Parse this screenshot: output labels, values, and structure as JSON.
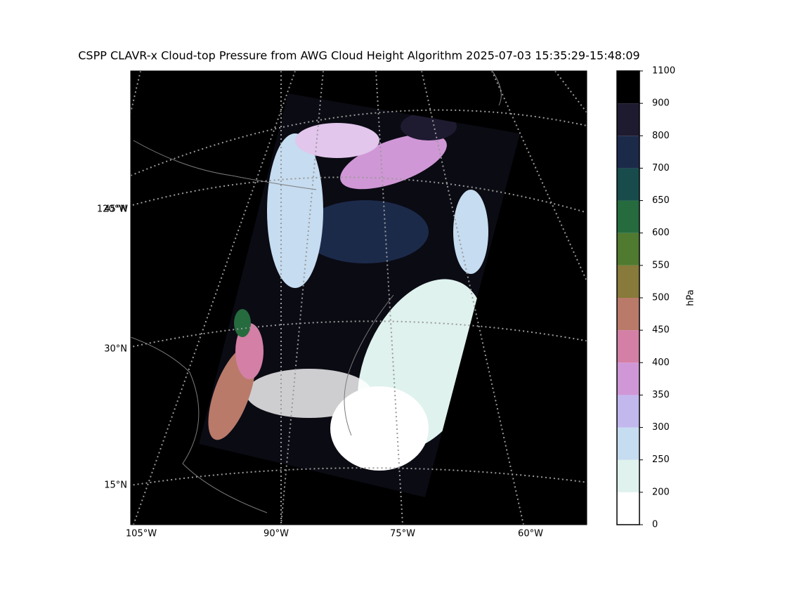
{
  "title": "CSPP CLAVR-x Cloud-top Pressure from AWG Cloud Height Algorithm 2025-07-03 15:35:29-15:48:09",
  "map": {
    "lon_labels": [
      "105°W",
      "90°W",
      "75°W",
      "60°W"
    ],
    "lat_labels": [
      "45°N",
      "30°N",
      "15°N"
    ],
    "meridian_label": "120°W"
  },
  "colorbar": {
    "label": "hPa",
    "ticks": [
      0,
      200,
      250,
      300,
      350,
      400,
      450,
      500,
      550,
      600,
      650,
      700,
      800,
      900,
      1100
    ],
    "colors": [
      "#ffffff",
      "#dff2ee",
      "#c6dcf0",
      "#c2b8ee",
      "#d097d6",
      "#d47fa6",
      "#b97a6a",
      "#877a3a",
      "#4f7a2f",
      "#256b3e",
      "#184c4c",
      "#1c2a4a",
      "#1e1a30",
      "#000000"
    ]
  }
}
